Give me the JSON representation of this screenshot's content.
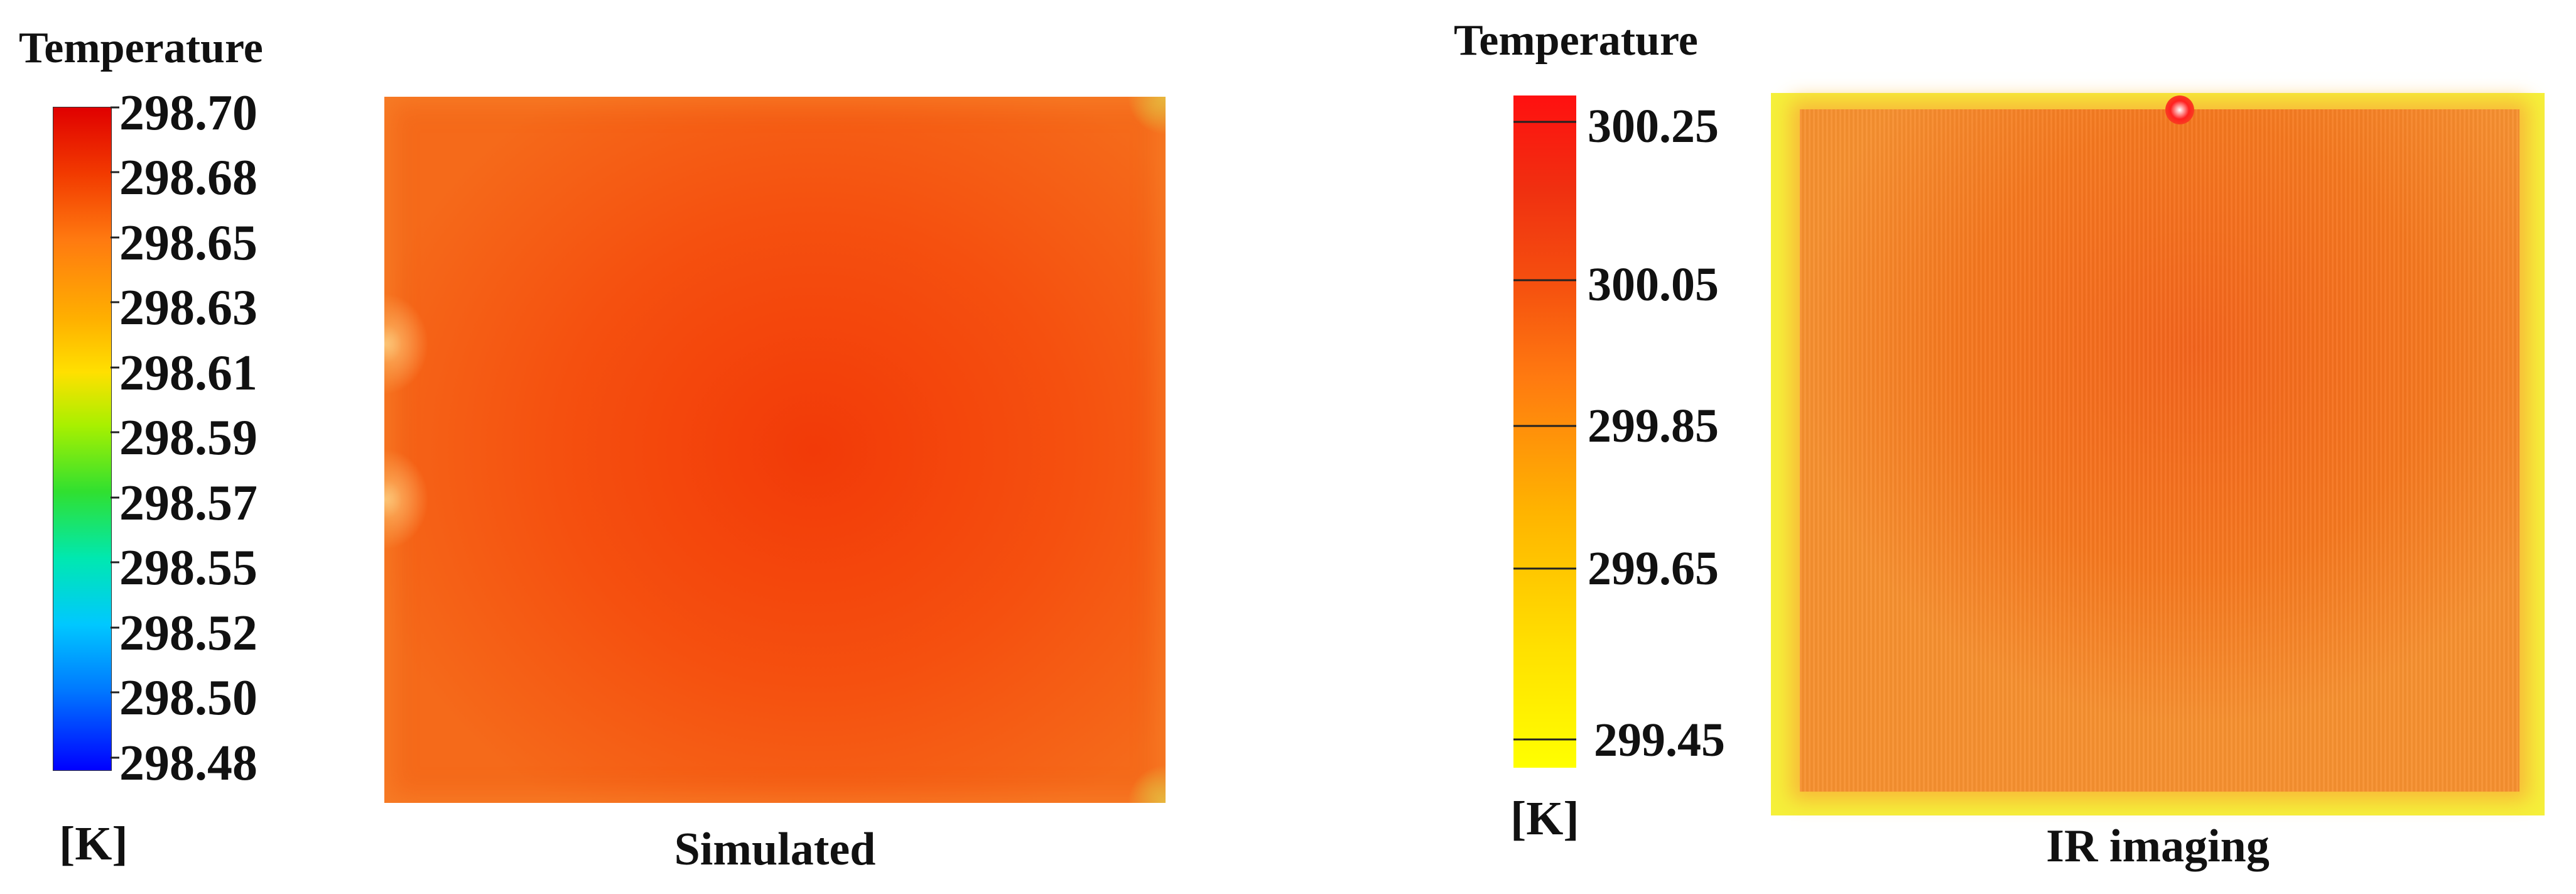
{
  "chart_data": [
    {
      "type": "heatmap",
      "title": "Simulated",
      "colorbar_title": "Temperature",
      "unit": "[K]",
      "colorbar_ticks": [
        "298.70",
        "298.68",
        "298.65",
        "298.63",
        "298.61",
        "298.59",
        "298.57",
        "298.55",
        "298.52",
        "298.50",
        "298.48"
      ],
      "range": [
        298.48,
        298.7
      ],
      "colormap": [
        "#0000ff",
        "#00a0ff",
        "#00e0c0",
        "#30e030",
        "#c8f000",
        "#ffd000",
        "#ff9000",
        "#ff5000",
        "#e00000"
      ],
      "field_color": "#f25010",
      "hot_spots_color": "#ffd070"
    },
    {
      "type": "heatmap",
      "title": "IR imaging",
      "colorbar_title": "Temperature",
      "unit": "[K]",
      "colorbar_ticks": [
        "300.25",
        "300.05",
        "299.85",
        "299.65",
        "299.45"
      ],
      "colormap": [
        "#ffff00",
        "#ffd000",
        "#ff9a00",
        "#ff5a10",
        "#ff1a1a"
      ],
      "field_color": "#f57a20",
      "border_color": "#f5f03a"
    }
  ]
}
